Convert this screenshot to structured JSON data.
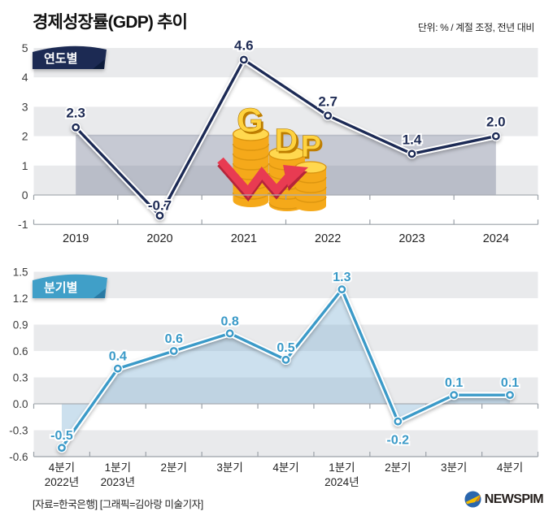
{
  "title": "경제성장률(GDP) 추이",
  "unit_note": "단위: % / 계절 조정, 전년 대비",
  "illustration": {
    "g": "G",
    "d": "D",
    "p": "P"
  },
  "footer": {
    "credit": "[자료=한국은행] [그래픽=김아랑 미술기자]",
    "logo_text": "NEWSPIM"
  },
  "colors": {
    "stripe": "#e9eaec",
    "axis_line": "#9aa0a7",
    "zero_line": "#a9adb3",
    "tick_label": "#3c3c3c",
    "x_label": "#222222",
    "backdrop_band": "rgba(120,127,149,0.42)",
    "area_fill": "rgba(127,177,212,0.40)"
  },
  "chart_data": [
    {
      "type": "line",
      "title": "연도별",
      "categories": [
        "2019",
        "2020",
        "2021",
        "2022",
        "2023",
        "2024"
      ],
      "values": [
        2.3,
        -0.7,
        4.6,
        2.7,
        1.4,
        2.0
      ],
      "ylim": [
        -1,
        5
      ],
      "ystep": 1,
      "ytick_decimals": 0,
      "grid": "striped",
      "legend": "none",
      "xlabel": "",
      "ylabel": "%",
      "line_color": "#1f2c55",
      "badge_color": "#1b2a52",
      "badge_fold_color": "#0d1b3b",
      "backdrop_band": {
        "from_value": 0,
        "to_value": 2.05
      },
      "area_fill": false
    },
    {
      "type": "line",
      "title": "분기별",
      "categories": [
        [
          "4분기",
          "2022년"
        ],
        [
          "1분기",
          "2023년"
        ],
        "2분기",
        "3분기",
        "4분기",
        [
          "1분기",
          "2024년"
        ],
        "2분기",
        "3분기",
        "4분기"
      ],
      "values": [
        -0.5,
        0.4,
        0.6,
        0.8,
        0.5,
        1.3,
        -0.2,
        0.1,
        0.1
      ],
      "ylim": [
        -0.6,
        1.5
      ],
      "ystep": 0.3,
      "ytick_decimals": 1,
      "grid": "striped",
      "legend": "none",
      "xlabel": "",
      "ylabel": "%",
      "line_color": "#3a9ac8",
      "badge_color": "#3f9fc8",
      "badge_fold_color": "#2a7aa4",
      "area_fill": true
    }
  ]
}
